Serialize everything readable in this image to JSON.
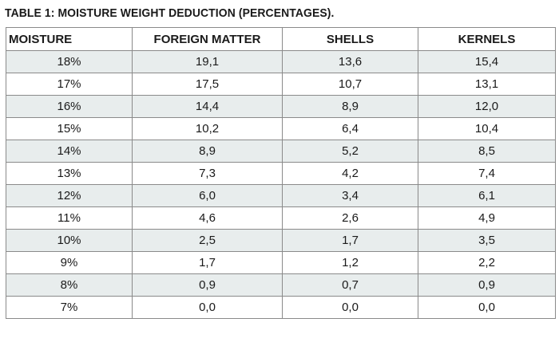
{
  "title": "TABLE 1: MOISTURE WEIGHT DEDUCTION (PERCENTAGES).",
  "table": {
    "headers": [
      "MOISTURE",
      "FOREIGN MATTER",
      "SHELLS",
      "KERNELS"
    ],
    "rows": [
      [
        "18%",
        "19,1",
        "13,6",
        "15,4"
      ],
      [
        "17%",
        "17,5",
        "10,7",
        "13,1"
      ],
      [
        "16%",
        "14,4",
        "8,9",
        "12,0"
      ],
      [
        "15%",
        "10,2",
        "6,4",
        "10,4"
      ],
      [
        "14%",
        "8,9",
        "5,2",
        "8,5"
      ],
      [
        "13%",
        "7,3",
        "4,2",
        "7,4"
      ],
      [
        "12%",
        "6,0",
        "3,4",
        "6,1"
      ],
      [
        "11%",
        "4,6",
        "2,6",
        "4,9"
      ],
      [
        "10%",
        "2,5",
        "1,7",
        "3,5"
      ],
      [
        "9%",
        "1,7",
        "1,2",
        "2,2"
      ],
      [
        "8%",
        "0,9",
        "0,7",
        "0,9"
      ],
      [
        "7%",
        "0,0",
        "0,0",
        "0,0"
      ]
    ]
  },
  "colors": {
    "shaded_row": "#e8eded",
    "border": "#8a8a8a",
    "text": "#1a1a1a"
  }
}
